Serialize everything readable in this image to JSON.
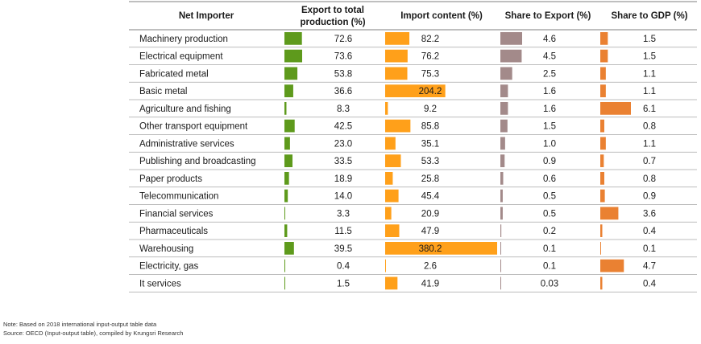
{
  "chart_data": {
    "type": "table",
    "columns": {
      "name": "Net Importer",
      "export": [
        "Export to total",
        "production (%)"
      ],
      "import": "Import content (%)",
      "share_export": "Share to Export (%)",
      "share_gdp": "Share to GDP (%)"
    },
    "colors": {
      "export": "#5e9a1c",
      "import": "#ffa01a",
      "share_export": "#a38a8a",
      "share_gdp": "#ea8132"
    },
    "bar_scale_max": {
      "export": 73.6,
      "import": 380.2,
      "share_export": 4.6,
      "share_gdp": 6.1
    },
    "rows": [
      {
        "name": "Machinery production",
        "export": 72.6,
        "export_label": "72.6",
        "import": 82.2,
        "import_label": "82.2",
        "share_export": 4.6,
        "share_export_label": "4.6",
        "share_gdp": 1.5,
        "share_gdp_label": "1.5"
      },
      {
        "name": "Electrical equipment",
        "export": 73.6,
        "export_label": "73.6",
        "import": 76.2,
        "import_label": "76.2",
        "share_export": 4.5,
        "share_export_label": "4.5",
        "share_gdp": 1.5,
        "share_gdp_label": "1.5"
      },
      {
        "name": "Fabricated metal",
        "export": 53.8,
        "export_label": "53.8",
        "import": 75.3,
        "import_label": "75.3",
        "share_export": 2.5,
        "share_export_label": "2.5",
        "share_gdp": 1.1,
        "share_gdp_label": "1.1"
      },
      {
        "name": "Basic metal",
        "export": 36.6,
        "export_label": "36.6",
        "import": 204.2,
        "import_label": "204.2",
        "share_export": 1.6,
        "share_export_label": "1.6",
        "share_gdp": 1.1,
        "share_gdp_label": "1.1"
      },
      {
        "name": "Agriculture and fishing",
        "export": 8.3,
        "export_label": "8.3",
        "import": 9.2,
        "import_label": "9.2",
        "share_export": 1.6,
        "share_export_label": "1.6",
        "share_gdp": 6.1,
        "share_gdp_label": "6.1"
      },
      {
        "name": "Other transport equipment",
        "export": 42.5,
        "export_label": "42.5",
        "import": 85.8,
        "import_label": "85.8",
        "share_export": 1.5,
        "share_export_label": "1.5",
        "share_gdp": 0.8,
        "share_gdp_label": "0.8"
      },
      {
        "name": "Administrative services",
        "export": 23.0,
        "export_label": "23.0",
        "import": 35.1,
        "import_label": "35.1",
        "share_export": 1.0,
        "share_export_label": "1.0",
        "share_gdp": 1.1,
        "share_gdp_label": "1.1"
      },
      {
        "name": "Publishing and broadcasting",
        "export": 33.5,
        "export_label": "33.5",
        "import": 53.3,
        "import_label": "53.3",
        "share_export": 0.9,
        "share_export_label": "0.9",
        "share_gdp": 0.7,
        "share_gdp_label": "0.7"
      },
      {
        "name": "Paper products",
        "export": 18.9,
        "export_label": "18.9",
        "import": 25.8,
        "import_label": "25.8",
        "share_export": 0.6,
        "share_export_label": "0.6",
        "share_gdp": 0.8,
        "share_gdp_label": "0.8"
      },
      {
        "name": "Telecommunication",
        "export": 14.0,
        "export_label": "14.0",
        "import": 45.4,
        "import_label": "45.4",
        "share_export": 0.5,
        "share_export_label": "0.5",
        "share_gdp": 0.9,
        "share_gdp_label": "0.9"
      },
      {
        "name": "Financial services",
        "export": 3.3,
        "export_label": "3.3",
        "import": 20.9,
        "import_label": "20.9",
        "share_export": 0.5,
        "share_export_label": "0.5",
        "share_gdp": 3.6,
        "share_gdp_label": "3.6"
      },
      {
        "name": "Pharmaceuticals",
        "export": 11.5,
        "export_label": "11.5",
        "import": 47.9,
        "import_label": "47.9",
        "share_export": 0.2,
        "share_export_label": "0.2",
        "share_gdp": 0.4,
        "share_gdp_label": "0.4"
      },
      {
        "name": "Warehousing",
        "export": 39.5,
        "export_label": "39.5",
        "import": 380.2,
        "import_label": "380.2",
        "share_export": 0.1,
        "share_export_label": "0.1",
        "share_gdp": 0.1,
        "share_gdp_label": "0.1"
      },
      {
        "name": "Electricity, gas",
        "export": 0.4,
        "export_label": "0.4",
        "import": 2.6,
        "import_label": "2.6",
        "share_export": 0.1,
        "share_export_label": "0.1",
        "share_gdp": 4.7,
        "share_gdp_label": "4.7"
      },
      {
        "name": "It services",
        "export": 1.5,
        "export_label": "1.5",
        "import": 41.9,
        "import_label": "41.9",
        "share_export": 0.03,
        "share_export_label": "0.03",
        "share_gdp": 0.4,
        "share_gdp_label": "0.4"
      }
    ]
  },
  "notes": {
    "note": "Note: Based on 2018 international input-output table data",
    "source": "Source: OECD (Input-output table), compiled by Krungsri Research"
  }
}
